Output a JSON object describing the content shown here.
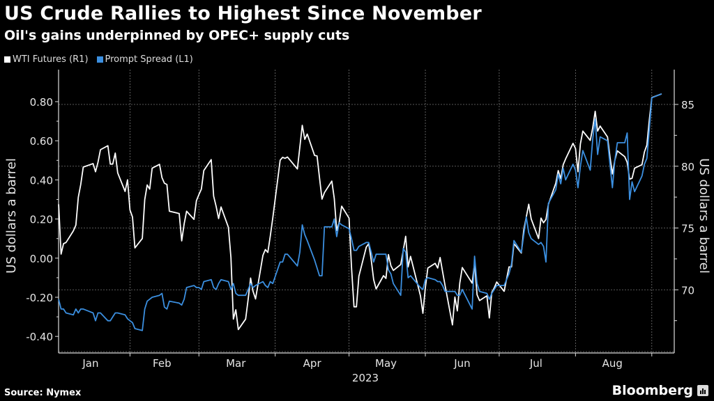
{
  "header": {
    "title": "US Crude Rallies to Highest Since November",
    "subtitle": "Oil's gains underpinned by OPEC+ supply cuts"
  },
  "footer": {
    "source": "Source: Nymex",
    "logo": "Bloomberg"
  },
  "colors": {
    "wti": "#ffffff",
    "spread": "#3b8fe0",
    "background": "#000000"
  },
  "chart_data": {
    "type": "line",
    "title": "US Crude Rallies to Highest Since November",
    "subtitle": "Oil's gains underpinned by OPEC+ supply cuts",
    "legend_position": "top-left",
    "grid": true,
    "xlabel": "2023",
    "x_tick_labels": [
      "Jan",
      "Feb",
      "Mar",
      "Apr",
      "May",
      "Jun",
      "Jul",
      "Aug"
    ],
    "left_axis": {
      "label": "US dollars a barrel",
      "ylim": [
        -0.46,
        0.93
      ],
      "ticks": [
        0.8,
        0.6,
        0.4,
        0.2,
        0.0,
        -0.2,
        -0.4
      ],
      "tick_labels": [
        "0.80",
        "0.60",
        "0.40",
        "0.20",
        "0.00",
        "-0.20",
        "-0.40"
      ]
    },
    "right_axis": {
      "label": "US dollars a barrel",
      "ylim": [
        65.2,
        87.8
      ],
      "ticks": [
        85,
        80,
        75,
        70
      ],
      "tick_labels": [
        "85",
        "80",
        "75",
        "70"
      ]
    },
    "x": [
      "2023-01-03",
      "2023-01-04",
      "2023-01-05",
      "2023-01-06",
      "2023-01-09",
      "2023-01-10",
      "2023-01-11",
      "2023-01-12",
      "2023-01-13",
      "2023-01-17",
      "2023-01-18",
      "2023-01-19",
      "2023-01-20",
      "2023-01-23",
      "2023-01-24",
      "2023-01-25",
      "2023-01-26",
      "2023-01-27",
      "2023-01-30",
      "2023-01-31",
      "2023-02-01",
      "2023-02-02",
      "2023-02-03",
      "2023-02-06",
      "2023-02-07",
      "2023-02-08",
      "2023-02-09",
      "2023-02-10",
      "2023-02-13",
      "2023-02-14",
      "2023-02-15",
      "2023-02-16",
      "2023-02-17",
      "2023-02-21",
      "2023-02-22",
      "2023-02-23",
      "2023-02-24",
      "2023-02-27",
      "2023-02-28",
      "2023-03-01",
      "2023-03-02",
      "2023-03-03",
      "2023-03-06",
      "2023-03-07",
      "2023-03-08",
      "2023-03-09",
      "2023-03-10",
      "2023-03-13",
      "2023-03-14",
      "2023-03-15",
      "2023-03-16",
      "2023-03-17",
      "2023-03-20",
      "2023-03-21",
      "2023-03-22",
      "2023-03-23",
      "2023-03-24",
      "2023-03-27",
      "2023-03-28",
      "2023-03-29",
      "2023-03-30",
      "2023-03-31",
      "2023-04-03",
      "2023-04-04",
      "2023-04-05",
      "2023-04-06",
      "2023-04-10",
      "2023-04-11",
      "2023-04-12",
      "2023-04-13",
      "2023-04-14",
      "2023-04-17",
      "2023-04-18",
      "2023-04-19",
      "2023-04-20",
      "2023-04-21",
      "2023-04-24",
      "2023-04-25",
      "2023-04-26",
      "2023-04-27",
      "2023-04-28",
      "2023-05-01",
      "2023-05-02",
      "2023-05-03",
      "2023-05-04",
      "2023-05-05",
      "2023-05-08",
      "2023-05-09",
      "2023-05-10",
      "2023-05-11",
      "2023-05-12",
      "2023-05-15",
      "2023-05-16",
      "2023-05-17",
      "2023-05-18",
      "2023-05-19",
      "2023-05-22",
      "2023-05-23",
      "2023-05-24",
      "2023-05-25",
      "2023-05-26",
      "2023-05-30",
      "2023-05-31",
      "2023-06-01",
      "2023-06-02",
      "2023-06-05",
      "2023-06-06",
      "2023-06-07",
      "2023-06-08",
      "2023-06-09",
      "2023-06-12",
      "2023-06-13",
      "2023-06-14",
      "2023-06-15",
      "2023-06-16",
      "2023-06-20",
      "2023-06-21",
      "2023-06-22",
      "2023-06-23",
      "2023-06-26",
      "2023-06-27",
      "2023-06-28",
      "2023-06-29",
      "2023-06-30",
      "2023-07-03",
      "2023-07-05",
      "2023-07-06",
      "2023-07-07",
      "2023-07-10",
      "2023-07-11",
      "2023-07-12",
      "2023-07-13",
      "2023-07-14",
      "2023-07-17",
      "2023-07-18",
      "2023-07-19",
      "2023-07-20",
      "2023-07-21",
      "2023-07-24",
      "2023-07-25",
      "2023-07-26",
      "2023-07-27",
      "2023-07-28",
      "2023-07-31",
      "2023-08-01",
      "2023-08-02",
      "2023-08-03",
      "2023-08-04",
      "2023-08-07",
      "2023-08-08",
      "2023-08-09",
      "2023-08-10",
      "2023-08-11",
      "2023-08-14",
      "2023-08-15",
      "2023-08-16",
      "2023-08-17",
      "2023-08-18",
      "2023-08-21",
      "2023-08-22",
      "2023-08-23",
      "2023-08-24",
      "2023-08-25",
      "2023-08-28",
      "2023-08-29",
      "2023-08-30",
      "2023-08-31",
      "2023-09-01",
      "2023-09-05"
    ],
    "series": [
      {
        "name": "WTI Futures (R1)",
        "axis": "right",
        "color": "#ffffff",
        "values": [
          76.92,
          72.89,
          73.73,
          73.83,
          74.77,
          75.23,
          77.49,
          78.52,
          79.93,
          80.21,
          79.55,
          80.31,
          81.34,
          81.66,
          80.17,
          80.17,
          81.06,
          79.46,
          77.96,
          78.9,
          76.46,
          75.89,
          73.39,
          74.15,
          77.3,
          78.48,
          78.15,
          79.84,
          80.15,
          79.08,
          78.62,
          78.52,
          76.36,
          76.17,
          73.96,
          75.33,
          76.36,
          75.7,
          77.21,
          77.71,
          78.15,
          79.65,
          80.53,
          77.58,
          76.74,
          75.76,
          76.7,
          75.05,
          72.61,
          67.63,
          68.38,
          66.78,
          67.63,
          69.23,
          70.95,
          69.88,
          69.26,
          72.79,
          73.26,
          73.02,
          74.33,
          75.8,
          80.49,
          80.72,
          80.64,
          80.74,
          79.78,
          81.53,
          83.31,
          82.18,
          82.6,
          80.87,
          80.83,
          79.08,
          77.34,
          77.86,
          78.8,
          77.39,
          74.8,
          75.46,
          76.77,
          75.8,
          71.85,
          68.62,
          68.62,
          71.1,
          73.45,
          73.73,
          72.42,
          70.82,
          70.07,
          71.14,
          70.92,
          72.85,
          71.95,
          71.57,
          72.04,
          73.17,
          74.33,
          71.85,
          72.7,
          69.51,
          68.1,
          70.16,
          71.76,
          72.14,
          71.76,
          72.61,
          71.48,
          70.35,
          67.16,
          69.41,
          68.29,
          70.54,
          71.8,
          70.54,
          72.14,
          69.6,
          69.13,
          69.51,
          67.72,
          69.79,
          70.16,
          70.63,
          69.88,
          71.85,
          71.85,
          73.73,
          72.98,
          74.86,
          75.89,
          76.92,
          75.74,
          74.15,
          75.8,
          75.42,
          75.7,
          76.92,
          78.62,
          79.65,
          78.99,
          80.12,
          80.59,
          81.85,
          81.43,
          79.55,
          81.81,
          82.84,
          82.09,
          83.12,
          84.44,
          82.84,
          83.25,
          82.37,
          80.77,
          79.37,
          80.49,
          81.24,
          80.77,
          80.31,
          78.95,
          79.03,
          79.84,
          80.12,
          81.15,
          81.71,
          83.78,
          85.56,
          85.85
        ]
      },
      {
        "name": "Prompt Spread (L1)",
        "axis": "left",
        "color": "#3b8fe0",
        "values": [
          -0.21,
          -0.26,
          -0.26,
          -0.28,
          -0.29,
          -0.26,
          -0.28,
          -0.26,
          -0.26,
          -0.28,
          -0.32,
          -0.28,
          -0.28,
          -0.32,
          -0.32,
          -0.3,
          -0.28,
          -0.28,
          -0.29,
          -0.31,
          -0.32,
          -0.33,
          -0.36,
          -0.37,
          -0.26,
          -0.22,
          -0.21,
          -0.2,
          -0.19,
          -0.18,
          -0.25,
          -0.26,
          -0.22,
          -0.23,
          -0.24,
          -0.21,
          -0.15,
          -0.14,
          -0.15,
          -0.15,
          -0.16,
          -0.12,
          -0.11,
          -0.15,
          -0.16,
          -0.13,
          -0.11,
          -0.12,
          -0.16,
          -0.13,
          -0.18,
          -0.19,
          -0.19,
          -0.16,
          -0.13,
          -0.15,
          -0.14,
          -0.12,
          -0.14,
          -0.15,
          -0.12,
          -0.13,
          -0.02,
          -0.02,
          0.02,
          0.02,
          -0.04,
          0.03,
          0.17,
          0.12,
          0.09,
          -0.01,
          -0.05,
          -0.09,
          -0.09,
          0.16,
          0.16,
          0.2,
          0.11,
          0.18,
          0.17,
          0.15,
          0.1,
          0.04,
          0.04,
          0.06,
          0.08,
          0.08,
          0.03,
          -0.02,
          0.02,
          0.02,
          0.02,
          -0.06,
          -0.08,
          -0.13,
          -0.19,
          0.05,
          0.03,
          -0.1,
          -0.09,
          -0.15,
          -0.16,
          -0.11,
          -0.1,
          -0.11,
          -0.12,
          -0.12,
          -0.14,
          -0.17,
          -0.17,
          -0.17,
          -0.19,
          -0.19,
          -0.16,
          -0.26,
          0.01,
          -0.13,
          -0.17,
          -0.18,
          -0.21,
          -0.18,
          -0.16,
          -0.14,
          -0.14,
          -0.08,
          -0.03,
          0.09,
          0.03,
          0.12,
          0.21,
          0.13,
          0.1,
          0.07,
          0.08,
          0.06,
          -0.02,
          0.28,
          0.35,
          0.43,
          0.38,
          0.46,
          0.4,
          0.48,
          0.45,
          0.36,
          0.47,
          0.55,
          0.45,
          0.61,
          0.71,
          0.53,
          0.62,
          0.6,
          0.48,
          0.36,
          0.5,
          0.59,
          0.59,
          0.64,
          0.3,
          0.39,
          0.34,
          0.42,
          0.48,
          0.51,
          0.66,
          0.82,
          0.84
        ]
      }
    ]
  }
}
